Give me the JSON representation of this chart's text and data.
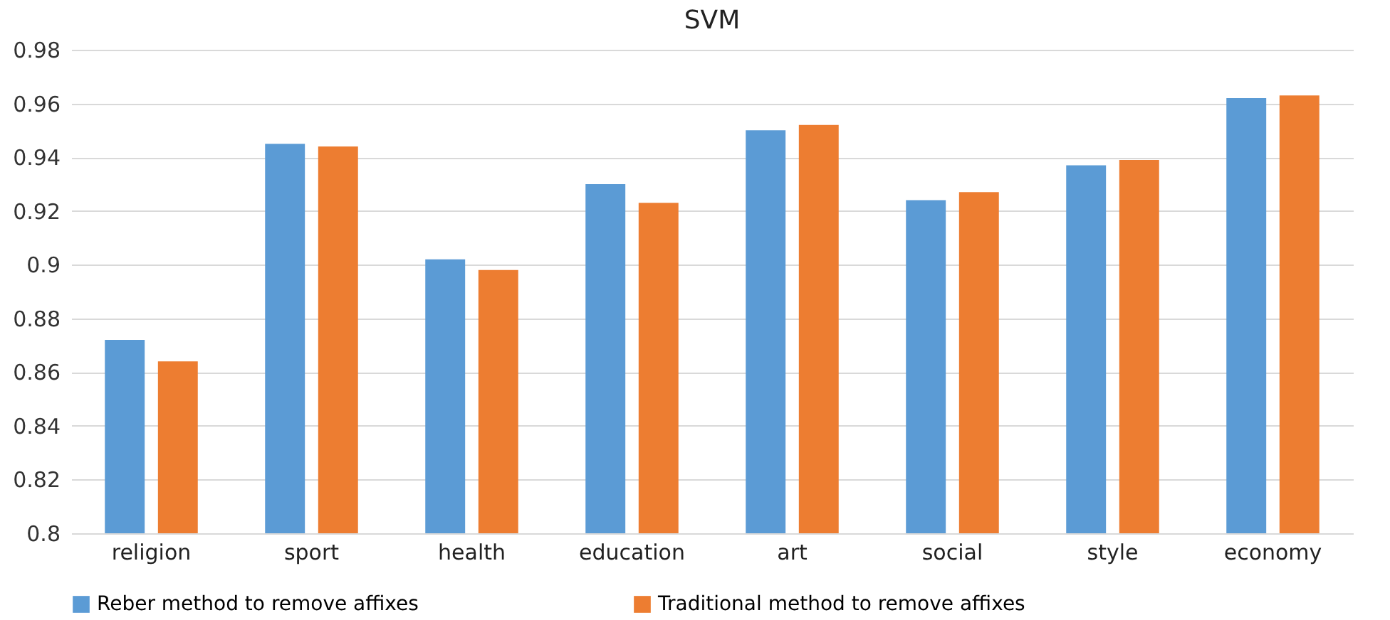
{
  "chart_data": {
    "type": "bar",
    "title": "SVM",
    "categories": [
      "religion",
      "sport",
      "health",
      "education",
      "art",
      "social",
      "style",
      "economy"
    ],
    "series": [
      {
        "name": "Reber method to remove affixes",
        "color": "#5b9bd5",
        "values": [
          0.872,
          0.945,
          0.902,
          0.93,
          0.95,
          0.924,
          0.937,
          0.962
        ]
      },
      {
        "name": "Traditional method to remove affixes",
        "color": "#ed7d31",
        "values": [
          0.864,
          0.944,
          0.898,
          0.923,
          0.952,
          0.927,
          0.939,
          0.963
        ]
      }
    ],
    "ylim": [
      0.8,
      0.98
    ],
    "yticks": [
      0.8,
      0.82,
      0.84,
      0.86,
      0.88,
      0.9,
      0.92,
      0.94,
      0.96,
      0.98
    ],
    "grid": "y",
    "legend": "bottom"
  }
}
